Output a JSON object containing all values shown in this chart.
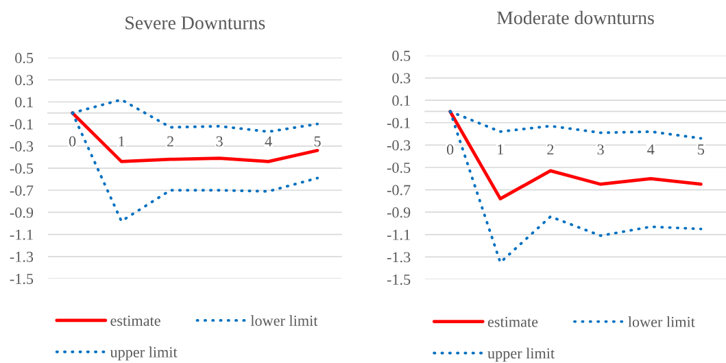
{
  "chart_data": [
    {
      "type": "line",
      "title": "Severe Downturns",
      "categories": [
        "0",
        "1",
        "2",
        "3",
        "4",
        "5"
      ],
      "series": [
        {
          "name": "estimate",
          "color": "#ff0000",
          "line_style": "solid",
          "values": [
            0,
            -0.44,
            -0.42,
            -0.41,
            -0.44,
            -0.34
          ]
        },
        {
          "name": "lower limit",
          "color": "#0070c0",
          "line_style": "dotted",
          "values": [
            0,
            -0.98,
            -0.7,
            -0.7,
            -0.71,
            -0.59
          ]
        },
        {
          "name": "upper limit",
          "color": "#0070c0",
          "line_style": "dotted",
          "values": [
            0,
            0.12,
            -0.13,
            -0.12,
            -0.17,
            -0.1
          ]
        }
      ],
      "ylim": [
        -1.5,
        0.5
      ],
      "yticks": [
        0.5,
        0.3,
        0.1,
        -0.1,
        -0.3,
        -0.5,
        -0.7,
        -0.9,
        -1.1,
        -1.3,
        -1.5
      ],
      "grid": "y",
      "legend": "bottom"
    },
    {
      "type": "line",
      "title": "Moderate downturns",
      "categories": [
        "0",
        "1",
        "2",
        "3",
        "4",
        "5"
      ],
      "series": [
        {
          "name": "estimate",
          "color": "#ff0000",
          "line_style": "solid",
          "values": [
            0,
            -0.78,
            -0.53,
            -0.65,
            -0.6,
            -0.65
          ]
        },
        {
          "name": "lower limit",
          "color": "#0070c0",
          "line_style": "dotted",
          "values": [
            0,
            -1.35,
            -0.94,
            -1.11,
            -1.03,
            -1.05
          ]
        },
        {
          "name": "upper limit",
          "color": "#0070c0",
          "line_style": "dotted",
          "values": [
            0,
            -0.18,
            -0.13,
            -0.19,
            -0.18,
            -0.24
          ]
        }
      ],
      "ylim": [
        -1.5,
        0.5
      ],
      "yticks": [
        0.5,
        0.3,
        0.1,
        -0.1,
        -0.3,
        -0.5,
        -0.7,
        -0.9,
        -1.1,
        -1.3,
        -1.5
      ],
      "grid": "y",
      "legend": "bottom"
    }
  ]
}
